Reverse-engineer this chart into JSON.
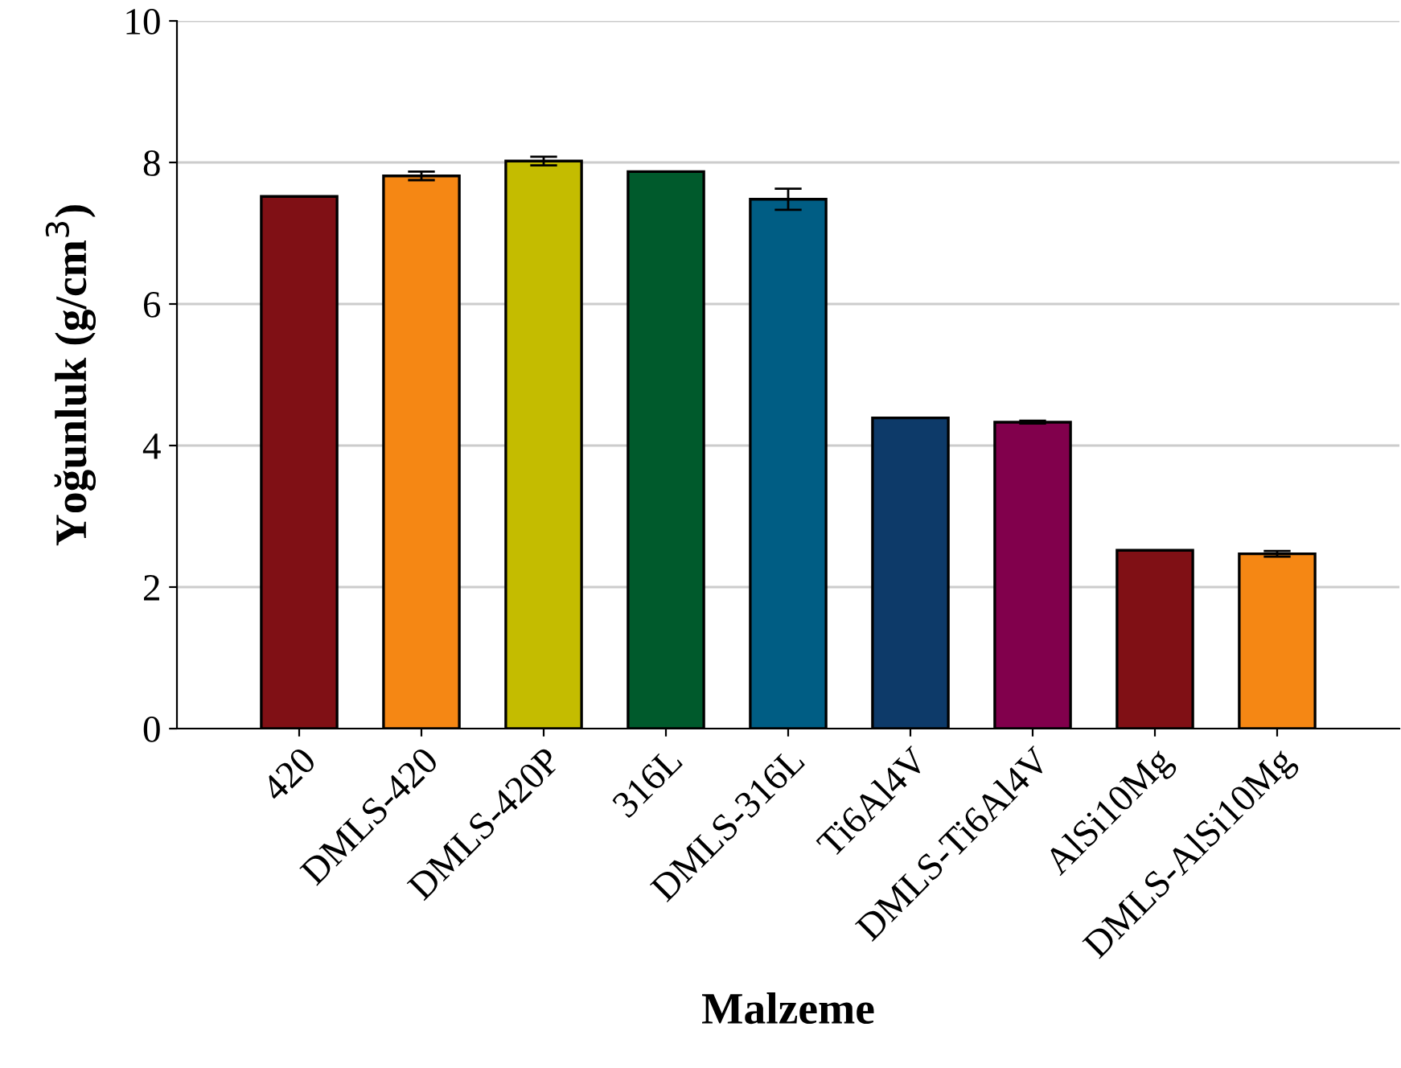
{
  "chart_data": {
    "type": "bar",
    "xlabel": "Malzeme",
    "ylabel": "Yoğunluk (g/cm$^{3}$)",
    "categories": [
      "420",
      "DMLS-420",
      "DMLS-420P",
      "316L",
      "DMLS-316L",
      "Ti6Al4V",
      "DMLS-Ti6Al4V",
      "AlSi10Mg",
      "DMLS-AlSi10Mg"
    ],
    "values": [
      7.52,
      7.81,
      8.02,
      7.87,
      7.48,
      4.39,
      4.33,
      2.52,
      2.47
    ],
    "errors": [
      null,
      0.06,
      0.06,
      null,
      0.15,
      null,
      0.02,
      null,
      0.04
    ],
    "colors": [
      "#801015",
      "#f58714",
      "#c4bc00",
      "#005a2c",
      "#005d84",
      "#0d3a69",
      "#81004c",
      "#801015",
      "#f58714"
    ],
    "ylim": [
      0,
      10
    ],
    "yticks": [
      0,
      2,
      4,
      6,
      8,
      10
    ],
    "grid": "y"
  }
}
